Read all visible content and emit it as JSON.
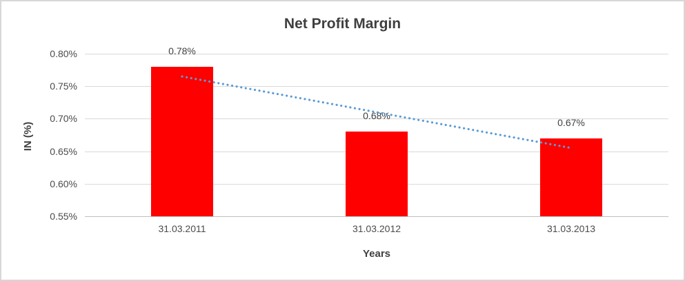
{
  "chart_data": {
    "type": "bar",
    "title": "Net Profit Margin",
    "xlabel": "Years",
    "ylabel": "IN (%)",
    "categories": [
      "31.03.2011",
      "31.03.2012",
      "31.03.2013"
    ],
    "series": [
      {
        "name": "Net Profit Margin",
        "values": [
          0.78,
          0.68,
          0.67
        ],
        "data_labels": [
          "0.78%",
          "0.68%",
          "0.67%"
        ],
        "color": "#ff0000"
      }
    ],
    "ylim": [
      0.55,
      0.8
    ],
    "y_ticks": [
      {
        "value": 0.8,
        "label": "0.80%"
      },
      {
        "value": 0.75,
        "label": "0.75%"
      },
      {
        "value": 0.7,
        "label": "0.70%"
      },
      {
        "value": 0.65,
        "label": "0.65%"
      },
      {
        "value": 0.6,
        "label": "0.60%"
      },
      {
        "value": 0.55,
        "label": "0.55%"
      }
    ],
    "grid": true,
    "legend": "none",
    "colors": {
      "bar": "#ff0000",
      "trendline": "#5b9bd5",
      "gridline": "#d9d9d9",
      "axis_line": "#bfbfbf",
      "title_text": "#3f3f3f",
      "label_text": "#404040",
      "tick_text": "#4a4a4a",
      "frame_border": "#d7d7d7"
    },
    "trendline": {
      "type": "linear",
      "style": "dotted",
      "color": "#5b9bd5",
      "start_value": 0.765,
      "end_value": 0.655
    }
  }
}
